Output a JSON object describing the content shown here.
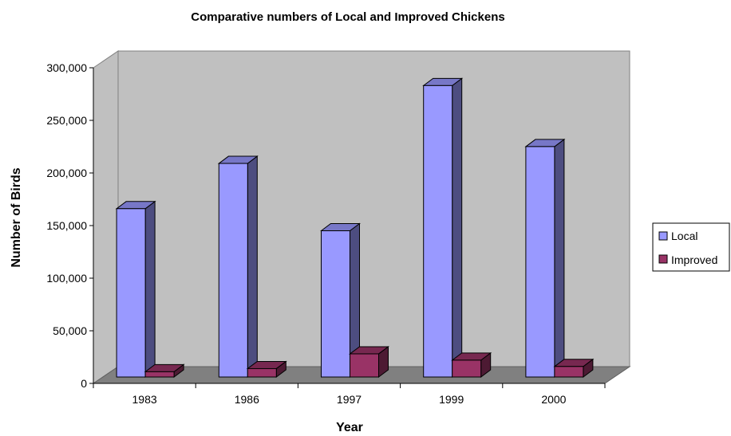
{
  "chart_data": {
    "type": "bar",
    "title": "Comparative numbers of Local and Improved Chickens",
    "xlabel": "Year",
    "ylabel": "Number of Birds",
    "categories": [
      "1983",
      "1986",
      "1997",
      "1999",
      "2000"
    ],
    "series": [
      {
        "name": "Local",
        "values": [
          160000,
          203000,
          139000,
          277000,
          219000
        ],
        "color": "#9999ff"
      },
      {
        "name": "Improved",
        "values": [
          5000,
          8000,
          22000,
          16000,
          10000
        ],
        "color": "#993366"
      }
    ],
    "ylim": [
      0,
      300000
    ],
    "yticks": [
      "0",
      "50,000",
      "100,000",
      "150,000",
      "200,000",
      "250,000",
      "300,000"
    ],
    "grid": false,
    "wall_color": "#c0c0c0",
    "floor_color": "#808080",
    "legend_position": "right",
    "three_d": true
  }
}
